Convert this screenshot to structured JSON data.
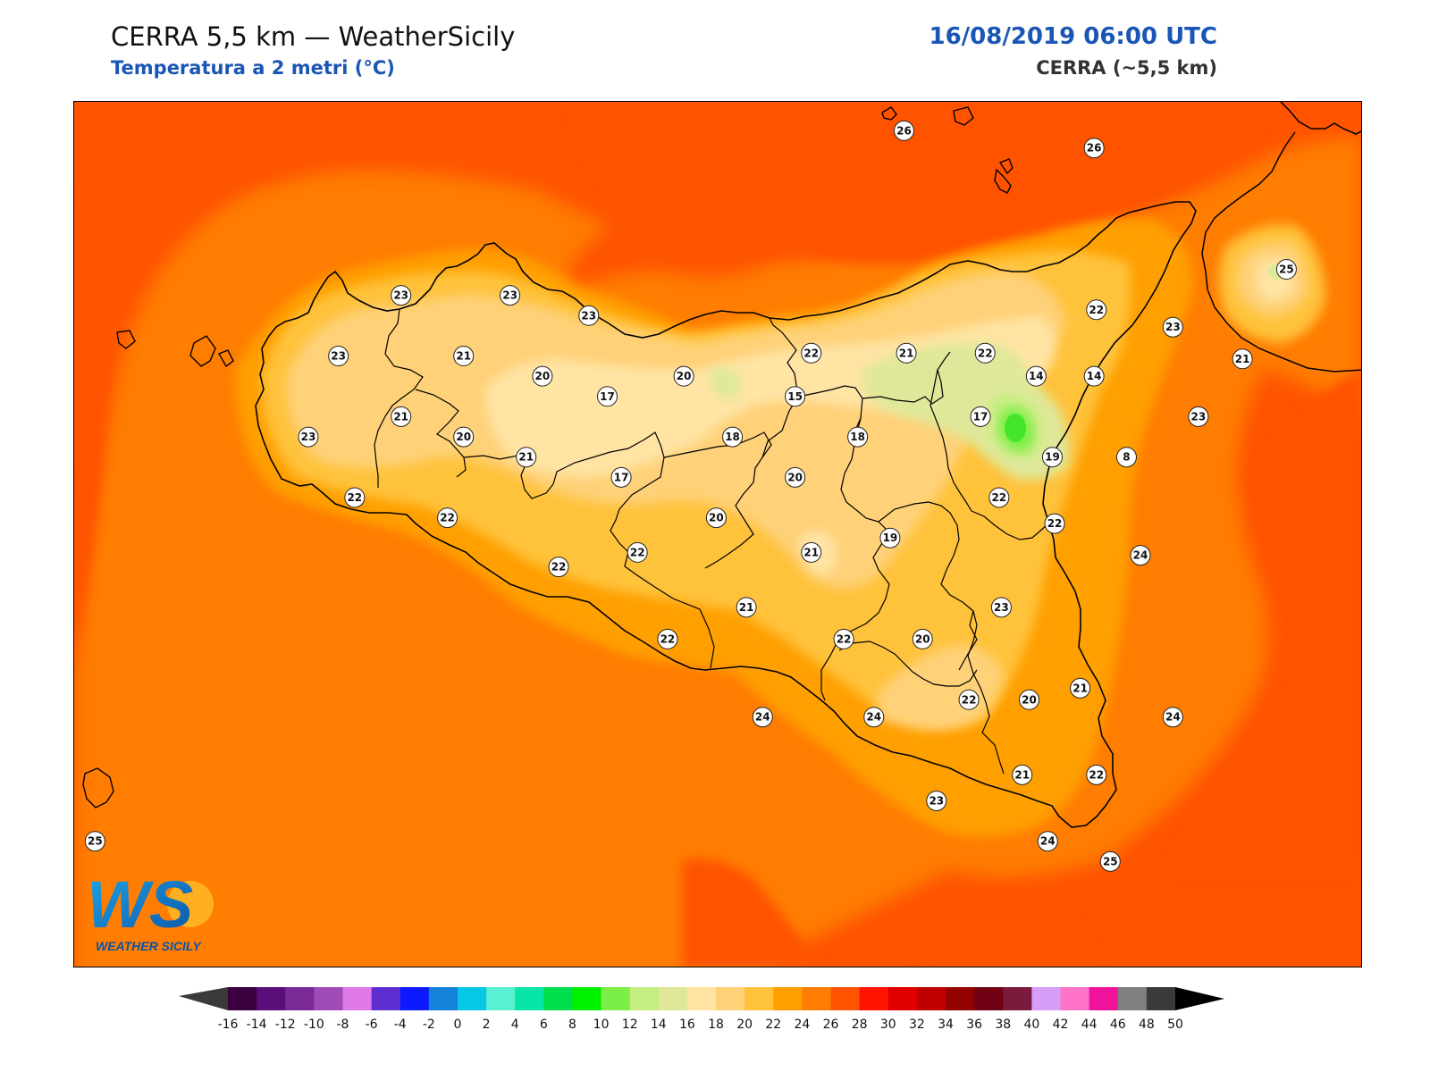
{
  "header": {
    "title": "CERRA 5,5 km — WeatherSicily",
    "subtitle": "Temperatura a 2 metri (°C)",
    "datetime": "16/08/2019 06:00 UTC",
    "model": "CERRA (~5,5 km)"
  },
  "logo": {
    "letters": "WS",
    "wordmark": "WEATHER SICILY"
  },
  "map": {
    "field_colors": {
      "sea_warm": "#ff5300",
      "sea": "#ff7d00",
      "coast": "#ff9f00",
      "land_22": "#ffc23b",
      "land_20": "#ffd178",
      "land_18": "#ffe4a4",
      "land_14": "#dfe89a",
      "land_12": "#c4ee7f",
      "land_10": "#7bef45",
      "land_8": "#44e62a"
    },
    "labels": [
      {
        "value": "26",
        "lon": 14.5,
        "lat": 38.83
      },
      {
        "value": "26",
        "lon": 15.32,
        "lat": 38.77
      },
      {
        "value": "25",
        "lon": 16.15,
        "lat": 38.35
      },
      {
        "value": "23",
        "lon": 12.33,
        "lat": 38.26
      },
      {
        "value": "23",
        "lon": 12.8,
        "lat": 38.26
      },
      {
        "value": "23",
        "lon": 13.14,
        "lat": 38.19
      },
      {
        "value": "23",
        "lon": 12.06,
        "lat": 38.05
      },
      {
        "value": "21",
        "lon": 12.6,
        "lat": 38.05
      },
      {
        "value": "20",
        "lon": 12.94,
        "lat": 37.98
      },
      {
        "value": "20",
        "lon": 13.55,
        "lat": 37.98
      },
      {
        "value": "17",
        "lon": 13.22,
        "lat": 37.91
      },
      {
        "value": "15",
        "lon": 14.03,
        "lat": 37.91
      },
      {
        "value": "21",
        "lon": 12.33,
        "lat": 37.84
      },
      {
        "value": "23",
        "lon": 11.93,
        "lat": 37.77
      },
      {
        "value": "20",
        "lon": 12.6,
        "lat": 37.77
      },
      {
        "value": "18",
        "lon": 13.76,
        "lat": 37.77
      },
      {
        "value": "18",
        "lon": 14.3,
        "lat": 37.77
      },
      {
        "value": "21",
        "lon": 12.87,
        "lat": 37.7
      },
      {
        "value": "17",
        "lon": 13.28,
        "lat": 37.63
      },
      {
        "value": "20",
        "lon": 14.03,
        "lat": 37.63
      },
      {
        "value": "22",
        "lon": 12.13,
        "lat": 37.56
      },
      {
        "value": "22",
        "lon": 12.53,
        "lat": 37.49
      },
      {
        "value": "20",
        "lon": 13.69,
        "lat": 37.49
      },
      {
        "value": "22",
        "lon": 13.35,
        "lat": 37.37
      },
      {
        "value": "21",
        "lon": 14.1,
        "lat": 37.37
      },
      {
        "value": "19",
        "lon": 14.44,
        "lat": 37.42
      },
      {
        "value": "22",
        "lon": 13.01,
        "lat": 37.32
      },
      {
        "value": "21",
        "lon": 13.82,
        "lat": 37.18
      },
      {
        "value": "22",
        "lon": 13.48,
        "lat": 37.07
      },
      {
        "value": "22",
        "lon": 14.24,
        "lat": 37.07
      },
      {
        "value": "20",
        "lon": 14.58,
        "lat": 37.07
      },
      {
        "value": "23",
        "lon": 14.92,
        "lat": 37.18
      },
      {
        "value": "22",
        "lon": 14.78,
        "lat": 36.86
      },
      {
        "value": "20",
        "lon": 15.04,
        "lat": 36.86
      },
      {
        "value": "21",
        "lon": 15.26,
        "lat": 36.9
      },
      {
        "value": "24",
        "lon": 13.89,
        "lat": 36.8
      },
      {
        "value": "24",
        "lon": 14.37,
        "lat": 36.8
      },
      {
        "value": "24",
        "lon": 15.66,
        "lat": 36.8
      },
      {
        "value": "21",
        "lon": 15.01,
        "lat": 36.6
      },
      {
        "value": "22",
        "lon": 15.33,
        "lat": 36.6
      },
      {
        "value": "23",
        "lon": 14.64,
        "lat": 36.51
      },
      {
        "value": "24",
        "lon": 15.12,
        "lat": 36.37
      },
      {
        "value": "25",
        "lon": 15.39,
        "lat": 36.3
      },
      {
        "value": "25",
        "lon": 11.01,
        "lat": 36.37
      },
      {
        "value": "22",
        "lon": 15.33,
        "lat": 38.21
      },
      {
        "value": "23",
        "lon": 15.66,
        "lat": 38.15
      },
      {
        "value": "22",
        "lon": 14.85,
        "lat": 38.06
      },
      {
        "value": "22",
        "lon": 14.1,
        "lat": 38.06
      },
      {
        "value": "21",
        "lon": 14.51,
        "lat": 38.06
      },
      {
        "value": "21",
        "lon": 15.96,
        "lat": 38.04
      },
      {
        "value": "14",
        "lon": 15.07,
        "lat": 37.98
      },
      {
        "value": "14",
        "lon": 15.32,
        "lat": 37.98
      },
      {
        "value": "17",
        "lon": 14.83,
        "lat": 37.84
      },
      {
        "value": "23",
        "lon": 15.77,
        "lat": 37.84
      },
      {
        "value": "19",
        "lon": 15.14,
        "lat": 37.7
      },
      {
        "value": "8",
        "lon": 15.46,
        "lat": 37.7
      },
      {
        "value": "22",
        "lon": 14.91,
        "lat": 37.56
      },
      {
        "value": "22",
        "lon": 15.15,
        "lat": 37.47
      },
      {
        "value": "24",
        "lon": 15.52,
        "lat": 37.36
      }
    ]
  },
  "colorbar": {
    "colors": [
      "#3a003f",
      "#5a0e7a",
      "#7a2a96",
      "#a04bb8",
      "#e079e8",
      "#5e2fd0",
      "#0b1aff",
      "#1482d8",
      "#06c7e6",
      "#5af0d2",
      "#07e6a8",
      "#00de4e",
      "#00f100",
      "#7bef45",
      "#c4ee7f",
      "#dfe89a",
      "#ffe4a4",
      "#ffd178",
      "#ffc23b",
      "#ff9f00",
      "#ff7d00",
      "#ff5300",
      "#ff1200",
      "#e10000",
      "#c00000",
      "#930000",
      "#700012",
      "#7a1a3c",
      "#d69df9",
      "#ff73c8",
      "#f0149c",
      "#7f7f7f",
      "#3a3a3a"
    ],
    "under_color": "#3a3a3a",
    "over_color": "#000000",
    "ticks": [
      "-16",
      "-14",
      "-12",
      "-10",
      "-8",
      "-6",
      "-4",
      "-2",
      "0",
      "2",
      "4",
      "6",
      "8",
      "10",
      "12",
      "14",
      "16",
      "18",
      "20",
      "22",
      "24",
      "26",
      "28",
      "30",
      "32",
      "34",
      "36",
      "38",
      "40",
      "42",
      "44",
      "46",
      "48",
      "50"
    ]
  }
}
